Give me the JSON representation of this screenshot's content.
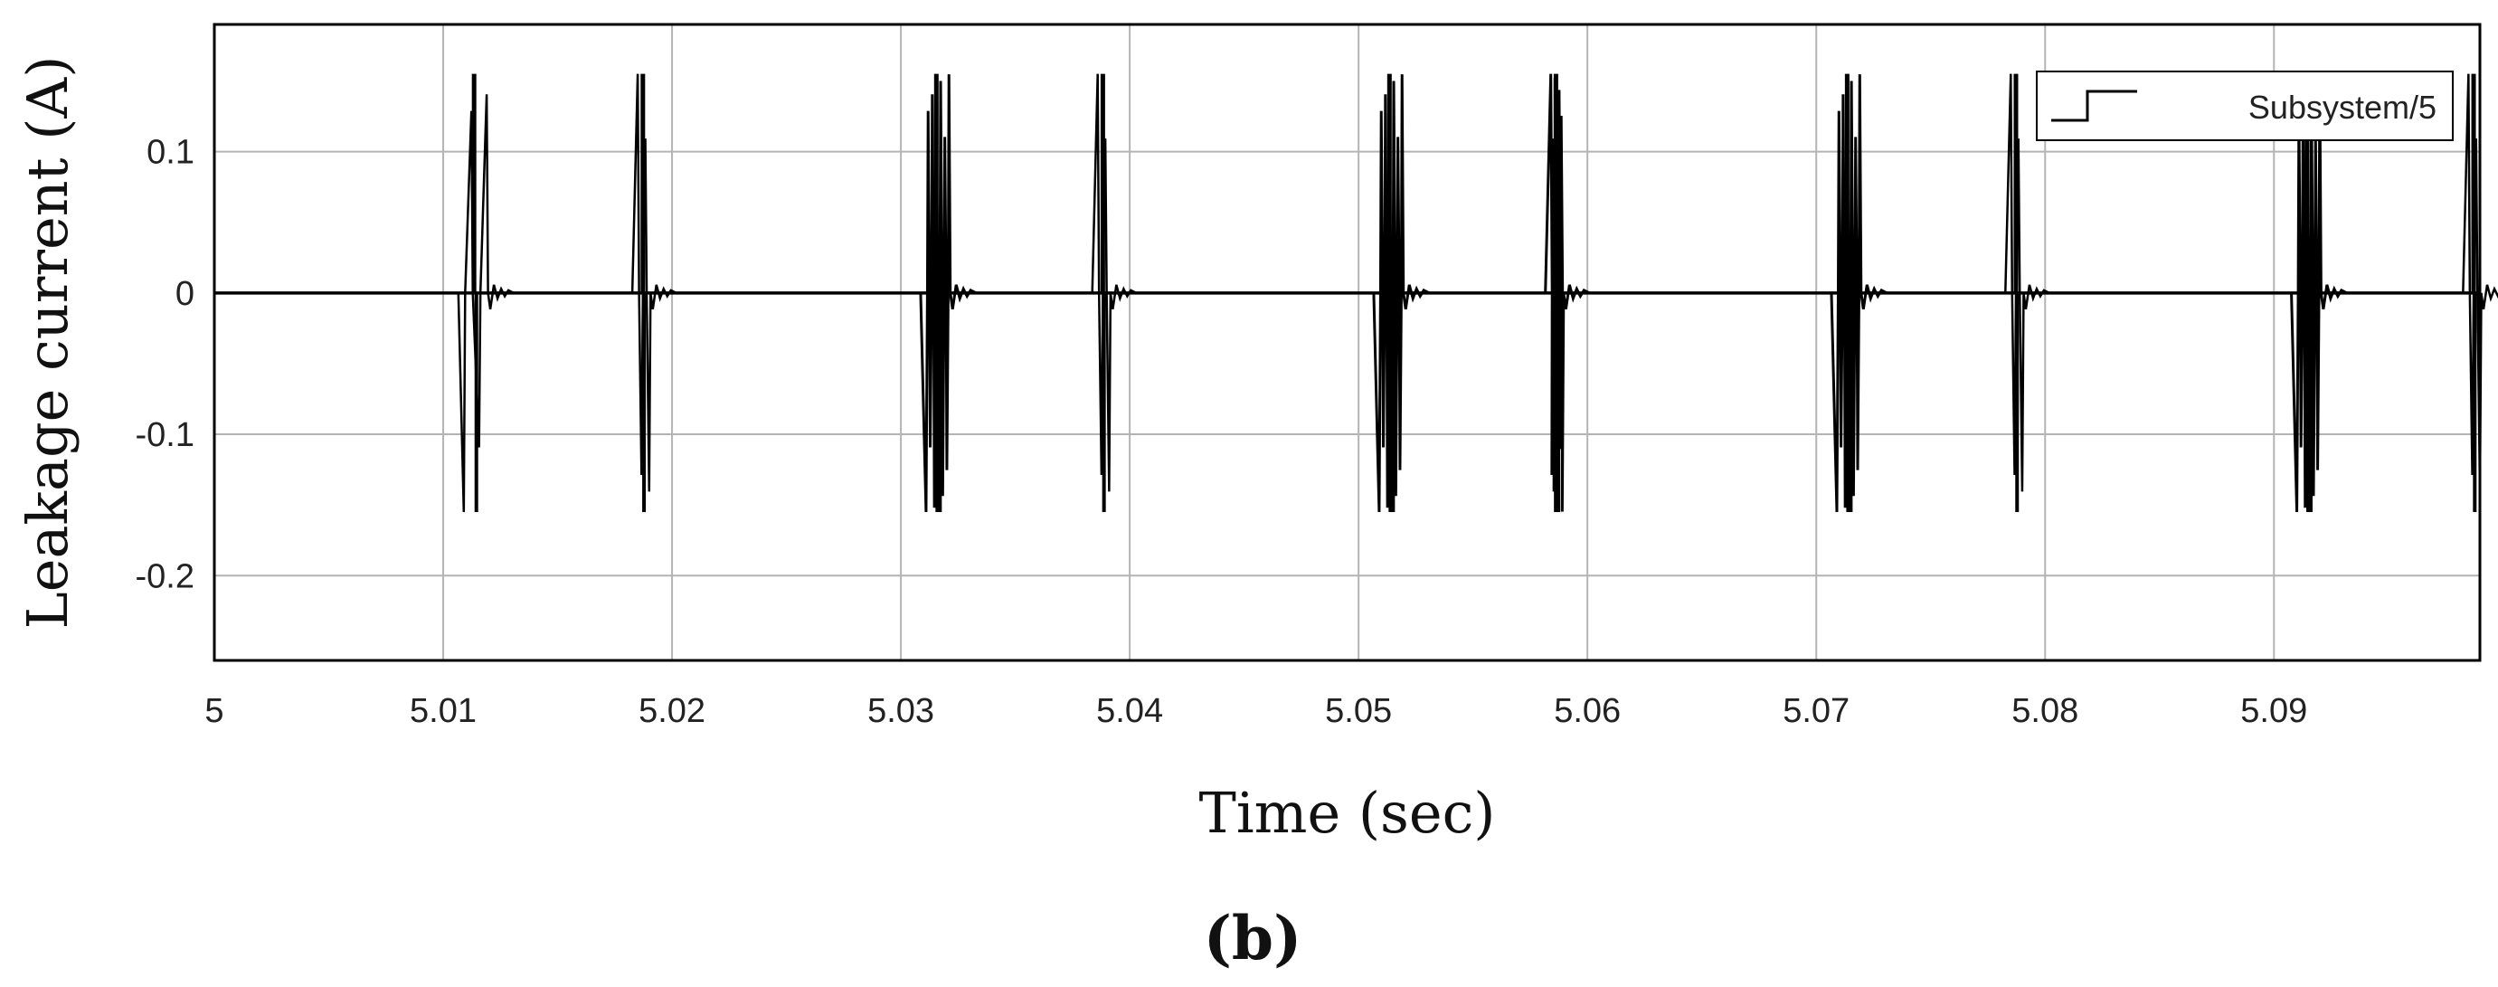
{
  "chart_data": {
    "type": "line",
    "title": "",
    "xlabel": "Time (sec)",
    "ylabel": "Leakage current (A)",
    "panel_label": "(b)",
    "xlim": [
      5.0,
      5.099
    ],
    "ylim": [
      -0.26,
      0.19
    ],
    "xticks": [
      5.0,
      5.01,
      5.02,
      5.03,
      5.04,
      5.05,
      5.06,
      5.07,
      5.08,
      5.09
    ],
    "xtick_labels": [
      "5",
      "5.01",
      "5.02",
      "5.03",
      "5.04",
      "5.05",
      "5.06",
      "5.07",
      "5.08",
      "5.09"
    ],
    "yticks": [
      0.1,
      0.0,
      -0.1,
      -0.2
    ],
    "ytick_labels": [
      "0.1",
      "0",
      "-0.1",
      "-0.2"
    ],
    "grid": true,
    "legend_position": "top-right",
    "colors": {
      "series": "#000000",
      "grid": "#b4b4b4",
      "axes": "#000000"
    },
    "series": [
      {
        "name": "Subsystem/5",
        "bursts": [
          {
            "start": 5.0109,
            "width": 0.001,
            "max": 0.155,
            "min": -0.155,
            "sign": -1,
            "dense": false
          },
          {
            "start": 5.0185,
            "width": 0.0005,
            "max": 0.155,
            "min": -0.155,
            "sign": 1,
            "dense": false
          },
          {
            "start": 5.0311,
            "width": 0.001,
            "max": 0.155,
            "min": -0.155,
            "sign": -1,
            "dense": true
          },
          {
            "start": 5.0386,
            "width": 0.0005,
            "max": 0.155,
            "min": -0.155,
            "sign": 1,
            "dense": false
          },
          {
            "start": 5.0509,
            "width": 0.001,
            "max": 0.155,
            "min": -0.155,
            "sign": -1,
            "dense": true
          },
          {
            "start": 5.0584,
            "width": 0.0005,
            "max": 0.155,
            "min": -0.155,
            "sign": 1,
            "dense": true
          },
          {
            "start": 5.0709,
            "width": 0.001,
            "max": 0.155,
            "min": -0.155,
            "sign": -1,
            "dense": true
          },
          {
            "start": 5.0785,
            "width": 0.0005,
            "max": 0.155,
            "min": -0.155,
            "sign": 1,
            "dense": false
          },
          {
            "start": 5.091,
            "width": 0.001,
            "max": 0.155,
            "min": -0.155,
            "sign": -1,
            "dense": true
          },
          {
            "start": 5.0985,
            "width": 0.0005,
            "max": 0.155,
            "min": -0.155,
            "sign": 1,
            "dense": false
          }
        ]
      }
    ]
  }
}
